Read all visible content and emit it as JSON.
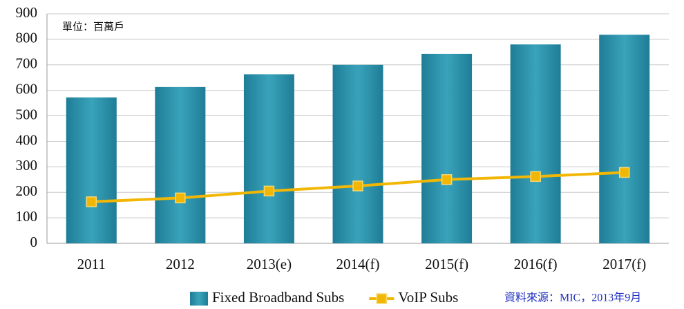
{
  "chart_data": {
    "type": "bar",
    "annotation": "單位：百萬戶",
    "source": "資料來源：MIC，2013年9月",
    "categories": [
      "2011",
      "2012",
      "2013(e)",
      "2014(f)",
      "2015(f)",
      "2016(f)",
      "2017(f)"
    ],
    "series": [
      {
        "name": "Fixed Broadband Subs",
        "type": "bar",
        "color": "#2a8ea6",
        "values": [
          572,
          613,
          663,
          700,
          743,
          780,
          818
        ]
      },
      {
        "name": "VoIP Subs",
        "type": "line",
        "color": "#f2b705",
        "values": [
          163,
          178,
          205,
          225,
          250,
          262,
          278
        ]
      }
    ],
    "ylim": [
      0,
      900
    ],
    "yticks": [
      0,
      100,
      200,
      300,
      400,
      500,
      600,
      700,
      800,
      900
    ],
    "grid": true,
    "legend": "bottom"
  }
}
